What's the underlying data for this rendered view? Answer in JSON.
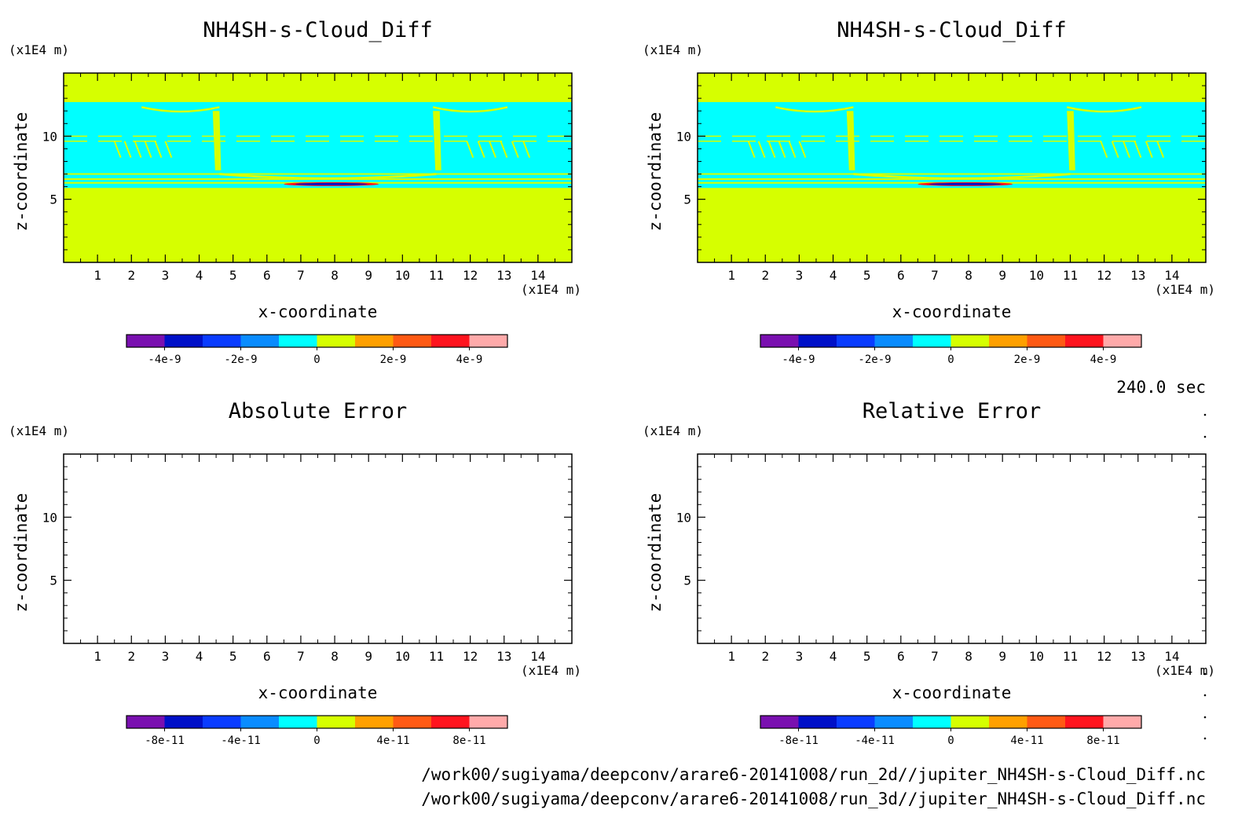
{
  "time_label": "240.0 sec",
  "file_paths": [
    "/work00/sugiyama/deepconv/arare6-20141008/run_2d//jupiter_NH4SH-s-Cloud_Diff.nc",
    "/work00/sugiyama/deepconv/arare6-20141008/run_3d//jupiter_NH4SH-s-Cloud_Diff.nc"
  ],
  "colors": {
    "background_field": "#d6ff00",
    "cloud_field": "#00ffff",
    "colorbar": [
      "#7a10b0",
      "#0010c8",
      "#0a3cff",
      "#0a8cff",
      "#00ffff",
      "#d6ff00",
      "#ffa000",
      "#ff5a14",
      "#ff141e",
      "#ffaaaa"
    ]
  },
  "chart_data": [
    {
      "type": "heatmap",
      "title": "NH4SH-s-Cloud_Diff",
      "xlabel": "x-coordinate",
      "ylabel": "z-coordinate",
      "x_unit": "(x1E4 m)",
      "y_unit": "(x1E4 m)",
      "xlim": [
        0,
        15
      ],
      "ylim": [
        0,
        15
      ],
      "x_ticks": [
        "1",
        "2",
        "3",
        "4",
        "5",
        "6",
        "7",
        "8",
        "9",
        "10",
        "11",
        "12",
        "13",
        "14"
      ],
      "y_ticks": [
        "5",
        "10"
      ],
      "field": {
        "background_value": "0 to 1e-9",
        "cloud_layer": {
          "z_min": 5.9,
          "z_max": 12.7,
          "value": "-1e-9 to 0"
        },
        "min_feature": {
          "x_range": [
            6.5,
            9.3
          ],
          "z": 6.2,
          "value": "-4e-9"
        }
      },
      "colorbar": {
        "labels": [
          "-4e-9",
          "-2e-9",
          "0",
          "2e-9",
          "4e-9"
        ],
        "n_colors": 10
      }
    },
    {
      "type": "heatmap",
      "title": "NH4SH-s-Cloud_Diff",
      "xlabel": "x-coordinate",
      "ylabel": "z-coordinate",
      "x_unit": "(x1E4 m)",
      "y_unit": "(x1E4 m)",
      "xlim": [
        0,
        15
      ],
      "ylim": [
        0,
        15
      ],
      "x_ticks": [
        "1",
        "2",
        "3",
        "4",
        "5",
        "6",
        "7",
        "8",
        "9",
        "10",
        "11",
        "12",
        "13",
        "14"
      ],
      "y_ticks": [
        "5",
        "10"
      ],
      "field": {
        "background_value": "0 to 1e-9",
        "cloud_layer": {
          "z_min": 5.9,
          "z_max": 12.7,
          "value": "-1e-9 to 0"
        },
        "min_feature": {
          "x_range": [
            6.5,
            9.3
          ],
          "z": 6.2,
          "value": "-4e-9"
        }
      },
      "colorbar": {
        "labels": [
          "-4e-9",
          "-2e-9",
          "0",
          "2e-9",
          "4e-9"
        ],
        "n_colors": 10
      }
    },
    {
      "type": "heatmap",
      "title": "Absolute Error",
      "xlabel": "x-coordinate",
      "ylabel": "z-coordinate",
      "x_unit": "(x1E4 m)",
      "y_unit": "(x1E4 m)",
      "xlim": [
        0,
        15
      ],
      "ylim": [
        0,
        15
      ],
      "x_ticks": [
        "1",
        "2",
        "3",
        "4",
        "5",
        "6",
        "7",
        "8",
        "9",
        "10",
        "11",
        "12",
        "13",
        "14"
      ],
      "y_ticks": [
        "5",
        "10"
      ],
      "field": null,
      "colorbar": {
        "labels": [
          "-8e-11",
          "-4e-11",
          "0",
          "4e-11",
          "8e-11"
        ],
        "n_colors": 10
      }
    },
    {
      "type": "heatmap",
      "title": "Relative Error",
      "xlabel": "x-coordinate",
      "ylabel": "z-coordinate",
      "x_unit": "(x1E4 m)",
      "y_unit": "(x1E4 m)",
      "xlim": [
        0,
        15
      ],
      "ylim": [
        0,
        15
      ],
      "x_ticks": [
        "1",
        "2",
        "3",
        "4",
        "5",
        "6",
        "7",
        "8",
        "9",
        "10",
        "11",
        "12",
        "13",
        "14"
      ],
      "y_ticks": [
        "5",
        "10"
      ],
      "field": null,
      "colorbar": {
        "labels": [
          "-8e-11",
          "-4e-11",
          "0",
          "4e-11",
          "8e-11"
        ],
        "n_colors": 10
      }
    }
  ]
}
